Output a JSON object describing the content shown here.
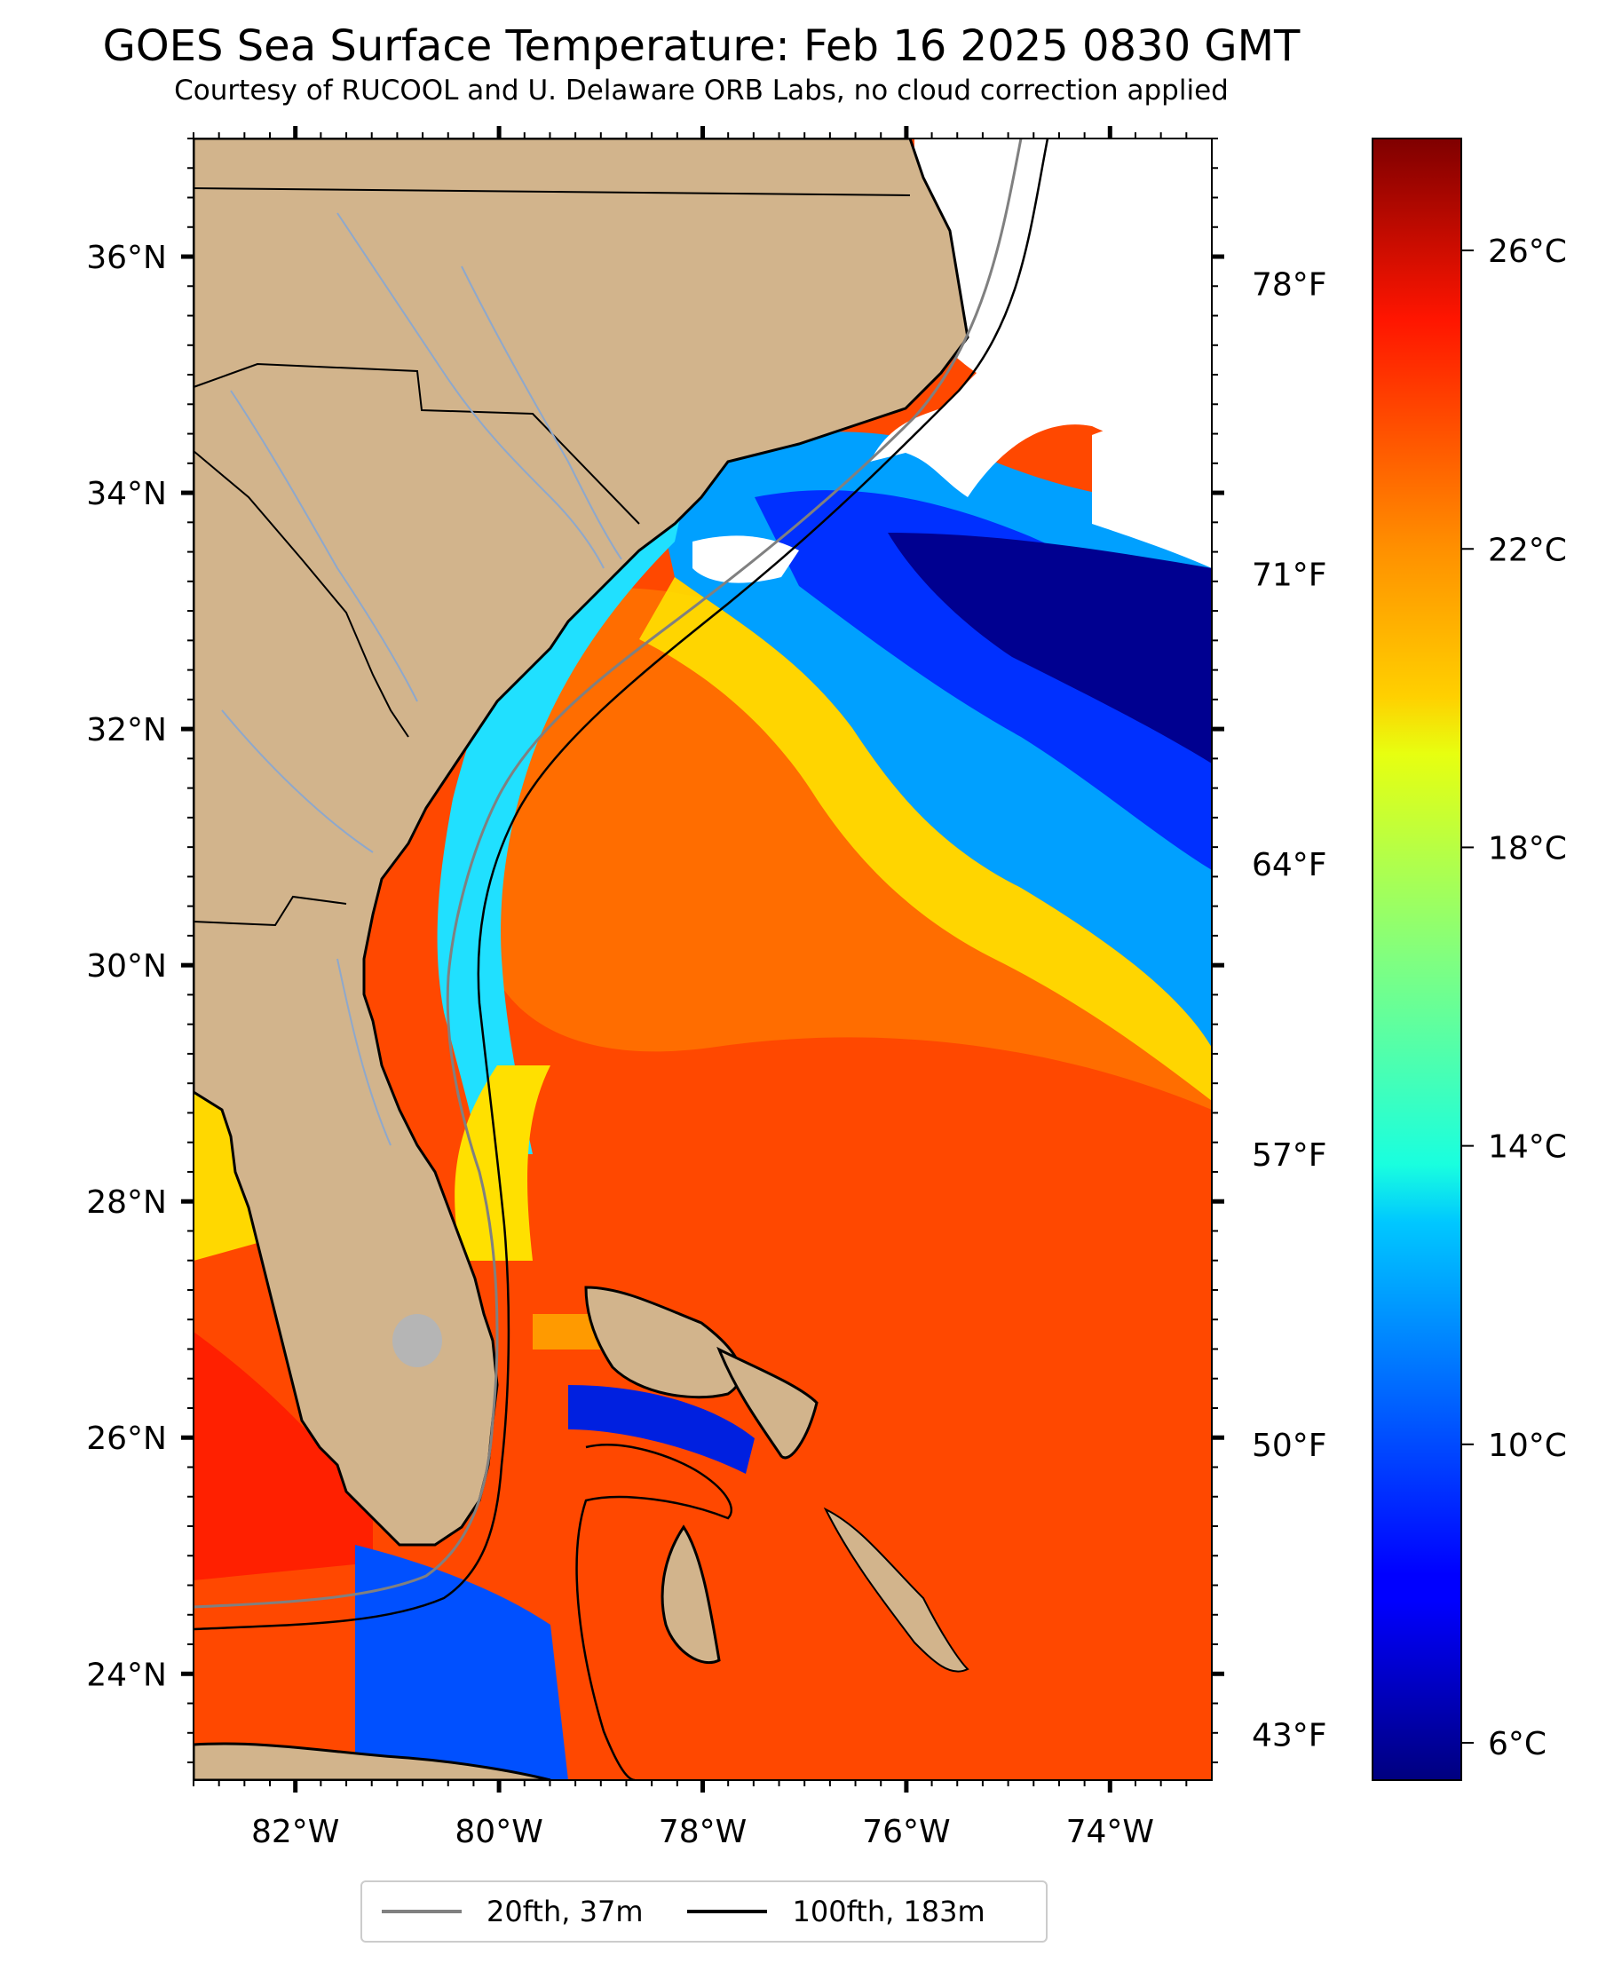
{
  "title": "GOES Sea Surface Temperature: Feb 16 2025 0830 GMT",
  "subtitle": "Courtesy of RUCOOL and U. Delaware ORB Labs, no cloud correction applied",
  "map": {
    "lon_range": [
      -83,
      -73
    ],
    "lat_range": [
      23.1,
      37.0
    ],
    "land_color": "#d2b48c",
    "cloud_color": "#ffffff",
    "lon_ticks": [
      {
        "value": -82,
        "label": "82°W"
      },
      {
        "value": -80,
        "label": "80°W"
      },
      {
        "value": -78,
        "label": "78°W"
      },
      {
        "value": -76,
        "label": "76°W"
      },
      {
        "value": -74,
        "label": "74°W"
      }
    ],
    "lat_ticks": [
      {
        "value": 36,
        "label": "36°N"
      },
      {
        "value": 34,
        "label": "34°N"
      },
      {
        "value": 32,
        "label": "32°N"
      },
      {
        "value": 30,
        "label": "30°N"
      },
      {
        "value": 28,
        "label": "28°N"
      },
      {
        "value": 26,
        "label": "26°N"
      },
      {
        "value": 24,
        "label": "24°N"
      }
    ]
  },
  "fahrenheit_axis": [
    {
      "value": 78,
      "label": "78°F"
    },
    {
      "value": 71,
      "label": "71°F"
    },
    {
      "value": 64,
      "label": "64°F"
    },
    {
      "value": 57,
      "label": "57°F"
    },
    {
      "value": 50,
      "label": "50°F"
    },
    {
      "value": 43,
      "label": "43°F"
    }
  ],
  "colorbar": {
    "colormap": "jet",
    "range_c": [
      5.5,
      27.5
    ],
    "ticks": [
      {
        "value": 26,
        "label": "26°C"
      },
      {
        "value": 22,
        "label": "22°C"
      },
      {
        "value": 18,
        "label": "18°C"
      },
      {
        "value": 14,
        "label": "14°C"
      },
      {
        "value": 10,
        "label": "10°C"
      },
      {
        "value": 6,
        "label": "6°C"
      }
    ]
  },
  "legend": [
    {
      "label": "20fth, 37m",
      "color": "#808080"
    },
    {
      "label": "100fth, 183m",
      "color": "#000000"
    }
  ]
}
